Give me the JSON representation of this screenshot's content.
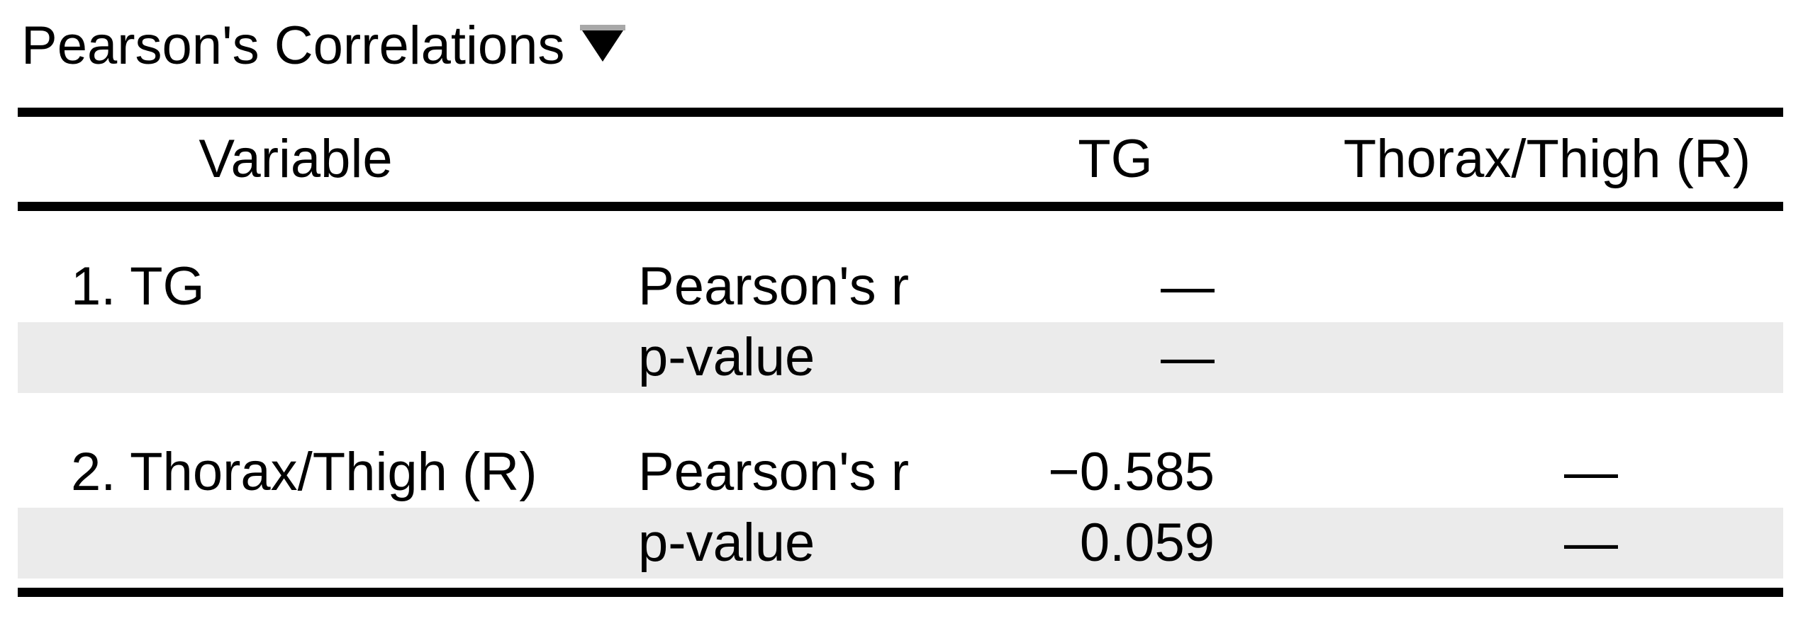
{
  "title": {
    "text": "Pearson's Correlations",
    "dropdown_icon": "triangle-down"
  },
  "table": {
    "header": {
      "variable": "Variable",
      "tg": "TG",
      "thorax": "Thorax/Thigh (R)"
    },
    "rows": [
      {
        "variable": "1. TG",
        "pearson": {
          "label": "Pearson's r",
          "tg": "—",
          "thorax": ""
        },
        "pvalue": {
          "label": "p-value",
          "tg": "—",
          "thorax": ""
        }
      },
      {
        "variable": "2. Thorax/Thigh (R)",
        "pearson": {
          "label": "Pearson's r",
          "tg": "−0.585",
          "thorax": "—"
        },
        "pvalue": {
          "label": "p-value",
          "tg": "0.059",
          "thorax": "—"
        }
      }
    ],
    "statistics": {
      "pearson_r_tg_vs_thorax_thigh_r": -0.585,
      "p_value_tg_vs_thorax_thigh_r": 0.059
    }
  },
  "colors": {
    "background": "#ffffff",
    "text": "#000000",
    "border": "#000000",
    "shaded_row": "#ebebeb",
    "arrow_top_bar": "#a8a8a8",
    "arrow": "#000000"
  }
}
